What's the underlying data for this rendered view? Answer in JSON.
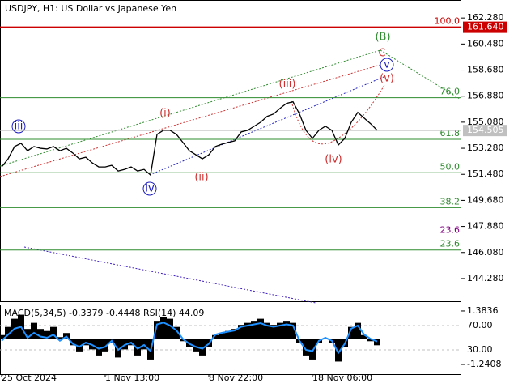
{
  "chart_data": {
    "type": "line",
    "title": "USDJPY, H1:  US Dollar vs Japanese Yen",
    "categories": [
      "25 Oct 2024",
      null,
      null,
      null,
      null,
      null,
      null,
      null,
      null,
      null,
      null,
      null,
      null,
      null,
      null,
      null,
      "1 Nov 13:00",
      null,
      null,
      null,
      null,
      null,
      null,
      null,
      null,
      null,
      null,
      null,
      null,
      null,
      null,
      null,
      "8 Nov 22:00",
      null,
      null,
      null,
      null,
      null,
      null,
      null,
      null,
      null,
      null,
      null,
      null,
      null,
      null,
      null,
      "18 Nov 06:00",
      null,
      null,
      null,
      null,
      null,
      null,
      null,
      null,
      null,
      null
    ],
    "series": [
      {
        "name": "USDJPY",
        "color": "#000000",
        "values": [
          151.99,
          152.55,
          153.4,
          153.62,
          153.11,
          153.4,
          153.28,
          153.23,
          153.4,
          153.11,
          153.28,
          152.95,
          152.55,
          152.66,
          152.27,
          151.99,
          151.99,
          152.1,
          151.71,
          151.82,
          151.99,
          151.71,
          151.82,
          151.43,
          154.24,
          154.52,
          154.52,
          154.24,
          153.68,
          153.11,
          152.83,
          152.55,
          152.83,
          153.4,
          153.56,
          153.68,
          153.79,
          154.41,
          154.52,
          154.8,
          155.08,
          155.48,
          155.65,
          156.04,
          156.38,
          156.49,
          155.65,
          154.52,
          153.96,
          154.52,
          154.8,
          154.52,
          153.51,
          153.96,
          155.08,
          155.76,
          155.36,
          154.97,
          154.52
        ]
      }
    ],
    "ylim": [
      142.71,
      163.52
    ],
    "yticks": [
      {
        "value": 162.28,
        "label": "162.280"
      },
      {
        "value": 160.48,
        "label": "160.480"
      },
      {
        "value": 158.68,
        "label": "158.680"
      },
      {
        "value": 156.88,
        "label": "156.880"
      },
      {
        "value": 155.08,
        "label": "155.080"
      },
      {
        "value": 153.28,
        "label": "153.280"
      },
      {
        "value": 151.48,
        "label": "151.480"
      },
      {
        "value": 149.68,
        "label": "149.680"
      },
      {
        "value": 147.88,
        "label": "147.880"
      },
      {
        "value": 146.08,
        "label": "146.080"
      },
      {
        "value": 144.28,
        "label": "144.280"
      }
    ],
    "current_price": 154.505,
    "target_price": {
      "value": 161.64,
      "label": "161.640"
    },
    "levels": [
      {
        "label": "100.0",
        "value": 161.64,
        "color": "#cc0000"
      },
      {
        "label": "76.0",
        "value": 156.77,
        "color": "#2e8b2e"
      },
      {
        "label": "61.8",
        "value": 153.9,
        "color": "#2e8b2e"
      },
      {
        "label": "50.0",
        "value": 151.59,
        "color": "#2e8b2e"
      },
      {
        "label": "38.2",
        "value": 149.18,
        "color": "#2e8b2e"
      },
      {
        "label": "23.6",
        "value": 147.21,
        "color": "#800080"
      },
      {
        "label": "23.6",
        "value": 146.25,
        "color": "#2e8b2e"
      }
    ],
    "annotations": [
      {
        "text": "(B)",
        "color": "#2e8b2e"
      },
      {
        "text": "C",
        "color": "#d03030"
      },
      {
        "text": "v",
        "color": "#2020c0"
      },
      {
        "text": "(v)",
        "color": "#d03030"
      },
      {
        "text": "(iii)",
        "color": "#d03030"
      },
      {
        "text": "(i)",
        "color": "#d03030"
      },
      {
        "text": "(ii)",
        "color": "#d03030"
      },
      {
        "text": "(iv)",
        "color": "#d03030"
      },
      {
        "text": "iii",
        "color": "#2020c0"
      },
      {
        "text": "iv",
        "color": "#2020c0"
      }
    ],
    "indicator": {
      "title": "MACD(5,34,5) -0.3379 -0.4448 RSI(14) 44.09",
      "macd": {
        "name": "MACD",
        "color": "#000000",
        "values": [
          0.2,
          0.6,
          1.0,
          1.2,
          0.5,
          0.8,
          0.5,
          0.4,
          0.6,
          0.1,
          0.3,
          -0.3,
          -0.6,
          -0.3,
          -0.5,
          -0.8,
          -0.6,
          -0.2,
          -0.9,
          -0.5,
          -0.3,
          -0.8,
          -0.5,
          -1.0,
          0.9,
          1.1,
          1.0,
          0.6,
          -0.1,
          -0.4,
          -0.6,
          -0.8,
          -0.4,
          0.2,
          0.3,
          0.4,
          0.5,
          0.7,
          0.8,
          0.9,
          1.0,
          0.8,
          0.7,
          0.8,
          0.9,
          0.8,
          -0.2,
          -0.8,
          -1.0,
          -0.2,
          0.0,
          -0.2,
          -1.1,
          -0.4,
          0.6,
          0.8,
          0.2,
          -0.1,
          -0.3
        ]
      },
      "rsi": {
        "name": "RSI",
        "color": "#1e90ff",
        "values": [
          45,
          55,
          65,
          68,
          50,
          58,
          52,
          50,
          55,
          45,
          52,
          40,
          35,
          42,
          38,
          32,
          35,
          45,
          30,
          38,
          42,
          32,
          38,
          28,
          72,
          75,
          70,
          62,
          48,
          40,
          35,
          32,
          40,
          55,
          58,
          60,
          62,
          68,
          70,
          72,
          74,
          70,
          68,
          70,
          72,
          70,
          45,
          30,
          28,
          45,
          50,
          45,
          25,
          40,
          65,
          70,
          55,
          48,
          44
        ]
      },
      "ylim": [
        -10,
        104.67
      ],
      "yticks": [
        {
          "value": 70,
          "label": "70.00"
        },
        {
          "value": 30,
          "label": "30.00"
        }
      ],
      "y2lim": [
        -1.718,
        1.7
      ],
      "y2ticks": [
        1.3836,
        -1.2408
      ]
    }
  }
}
